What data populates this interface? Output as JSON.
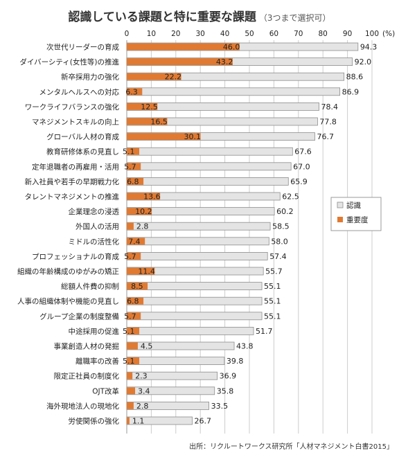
{
  "title": "認識している課題と特に重要な課題",
  "subtitle": "（3つまで選択可）",
  "source": "出所：リクルートワークス研究所「人材マネジメント白書2015」",
  "chart_data": {
    "type": "bar",
    "orientation": "horizontal",
    "x_unit": "(%)",
    "xlim": [
      0,
      100
    ],
    "x_ticks": [
      0,
      10,
      20,
      30,
      40,
      50,
      60,
      70,
      80,
      90,
      100
    ],
    "grid": true,
    "legend_position": "right",
    "categories": [
      "次世代リーダーの育成",
      "ダイバーシティ(女性等)の推進",
      "新卒採用力の強化",
      "メンタルヘルスへの対応",
      "ワークライフバランスの強化",
      "マネジメントスキルの向上",
      "グローバル人材の育成",
      "教育研修体系の見直し",
      "定年退職者の再雇用・活用",
      "新入社員や若手の早期戦力化",
      "タレントマネジメントの推進",
      "企業理念の浸透",
      "外国人の活用",
      "ミドルの活性化",
      "プロフェッショナルの育成",
      "組織の年齢構成のゆがみの矯正",
      "総額人件費の抑制",
      "人事の組織体制や機能の見直し",
      "グループ企業の制度整備",
      "中途採用の促進",
      "事業創造人材の発掘",
      "離職率の改善",
      "限定正社員の制度化",
      "OJT改革",
      "海外現地法人の現地化",
      "労使関係の強化"
    ],
    "series": [
      {
        "name": "認識",
        "color": "#e4e4e4",
        "values": [
          94.3,
          92.0,
          88.6,
          86.9,
          78.4,
          77.8,
          76.7,
          67.6,
          67.0,
          65.9,
          62.5,
          60.2,
          58.5,
          58.0,
          57.4,
          55.7,
          55.1,
          55.1,
          55.1,
          51.7,
          43.8,
          39.8,
          36.9,
          35.8,
          33.5,
          26.7
        ],
        "labels": [
          "94.3",
          "92.0",
          "88.6",
          "86.9",
          "78.4",
          "77.8",
          "76.7",
          "67.6",
          "67.0",
          "65.9",
          "62.5",
          "60.2",
          "58.5",
          "58.0",
          "57.4",
          "55.7",
          "55.1",
          "55.1",
          "55.1",
          "51.7",
          "43.8",
          "39.8",
          "36.9",
          "35.8",
          "33.5",
          "26.7"
        ]
      },
      {
        "name": "重要度",
        "color": "#e07a32",
        "values": [
          46.0,
          43.2,
          22.2,
          6.3,
          12.5,
          16.5,
          30.1,
          5.1,
          5.7,
          6.8,
          13.6,
          10.2,
          2.8,
          7.4,
          5.7,
          11.4,
          8.5,
          6.8,
          5.7,
          5.1,
          4.5,
          5.1,
          2.3,
          3.4,
          2.8,
          1.1
        ],
        "labels": [
          "46.0",
          "43.2",
          "22.2",
          "6.3",
          "12.5",
          "16.5",
          "30.1",
          "5.1",
          "5.7",
          "6.8",
          "13.6",
          "10.2",
          "2.8",
          "7.4",
          "5.7",
          "11.4",
          "8.5",
          "6.8",
          "5.7",
          "5.1",
          "4.5",
          "5.1",
          "2.3",
          "3.4",
          "2.8",
          "1.1"
        ]
      }
    ]
  }
}
